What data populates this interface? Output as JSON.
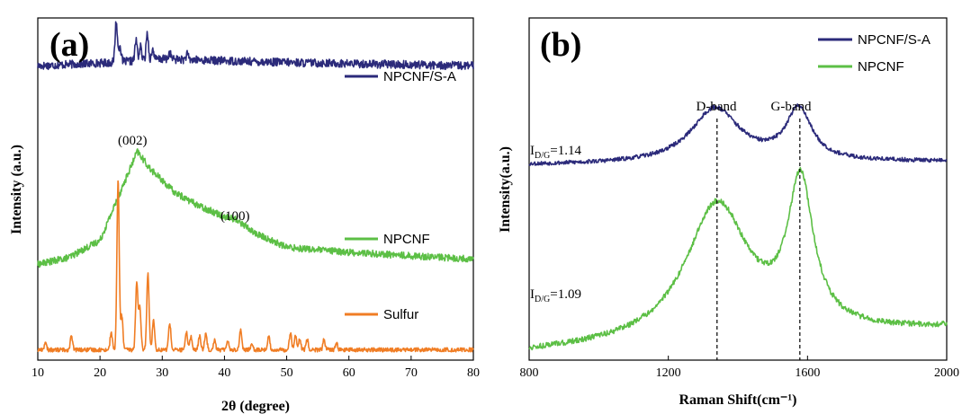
{
  "chart_data": [
    {
      "type": "line",
      "panel": "(a)",
      "xlabel": "2θ (degree)",
      "ylabel": "Intensity (a.u.)",
      "xlim": [
        10,
        80
      ],
      "xticks": [
        "10",
        "20",
        "30",
        "40",
        "50",
        "60",
        "70",
        "80"
      ],
      "colors": {
        "NPCNF/S-A": "#2b2a7a",
        "NPCNF": "#5cbf45",
        "Sulfur": "#f07d24"
      },
      "series": [
        {
          "name": "NPCNF/S-A",
          "offset": 0.86,
          "baseline": [
            [
              10,
              0.0
            ],
            [
              22,
              0.01
            ],
            [
              30,
              0.02
            ],
            [
              50,
              0.01
            ],
            [
              80,
              0.0
            ]
          ],
          "peaks": [
            [
              22.6,
              0.12
            ],
            [
              23.2,
              0.05
            ],
            [
              25.8,
              0.06
            ],
            [
              26.5,
              0.04
            ],
            [
              27.6,
              0.08
            ],
            [
              28.5,
              0.03
            ],
            [
              31.2,
              0.02
            ],
            [
              34.0,
              0.015
            ]
          ],
          "noise": 0.012
        },
        {
          "name": "NPCNF",
          "offset": 0.28,
          "baseline": [
            [
              10,
              0.0
            ],
            [
              15,
              0.02
            ],
            [
              20,
              0.07
            ],
            [
              23,
              0.2
            ],
            [
              26,
              0.33
            ],
            [
              28,
              0.28
            ],
            [
              32,
              0.21
            ],
            [
              36,
              0.17
            ],
            [
              40,
              0.14
            ],
            [
              42,
              0.13
            ],
            [
              45,
              0.09
            ],
            [
              50,
              0.05
            ],
            [
              60,
              0.035
            ],
            [
              70,
              0.025
            ],
            [
              80,
              0.015
            ]
          ],
          "peaks": [],
          "noise": 0.01
        },
        {
          "name": "Sulfur",
          "offset": 0.03,
          "baseline": [
            [
              10,
              0.0
            ],
            [
              80,
              0.0
            ]
          ],
          "peaks": [
            [
              11.2,
              0.02
            ],
            [
              15.4,
              0.04
            ],
            [
              21.8,
              0.05
            ],
            [
              22.9,
              0.5
            ],
            [
              23.5,
              0.1
            ],
            [
              25.9,
              0.2
            ],
            [
              26.4,
              0.12
            ],
            [
              27.7,
              0.23
            ],
            [
              28.6,
              0.09
            ],
            [
              31.2,
              0.08
            ],
            [
              33.9,
              0.05
            ],
            [
              34.6,
              0.04
            ],
            [
              36.0,
              0.04
            ],
            [
              37.0,
              0.05
            ],
            [
              38.4,
              0.03
            ],
            [
              40.5,
              0.03
            ],
            [
              42.6,
              0.06
            ],
            [
              44.4,
              0.02
            ],
            [
              47.1,
              0.04
            ],
            [
              50.6,
              0.05
            ],
            [
              51.4,
              0.04
            ],
            [
              52.1,
              0.03
            ],
            [
              53.3,
              0.03
            ],
            [
              56.0,
              0.03
            ],
            [
              58.0,
              0.02
            ]
          ],
          "noise": 0.006
        }
      ],
      "annotations": [
        "(002)",
        "(100)"
      ]
    },
    {
      "type": "line",
      "panel": "(b)",
      "xlabel": "Raman Shift(cm⁻¹)",
      "ylabel": "Intensity(a.u.)",
      "xlim": [
        800,
        2000
      ],
      "xticks": [
        "800",
        "1200",
        "1600",
        "2000"
      ],
      "colors": {
        "NPCNF/S-A": "#2b2a7a",
        "NPCNF": "#5cbf45"
      },
      "series": [
        {
          "name": "NPCNF/S-A",
          "offset": 0.57,
          "peaks": [
            [
              1335,
              0.16,
              85
            ],
            [
              1575,
              0.15,
              45
            ]
          ],
          "background": 0.01,
          "noise": 0.006
        },
        {
          "name": "NPCNF",
          "offset": 0.02,
          "peaks": [
            [
              1340,
              0.4,
              110
            ],
            [
              1580,
              0.42,
              45
            ]
          ],
          "background": 0.07,
          "noise": 0.008
        }
      ],
      "band_labels": [
        "D-band",
        "G-band"
      ],
      "band_positions": [
        1340,
        1578
      ],
      "ratios": [
        "1.14",
        "1.09"
      ],
      "ratio_prefix": "I",
      "ratio_sub": "D/G",
      "ratio_eq": "="
    }
  ]
}
